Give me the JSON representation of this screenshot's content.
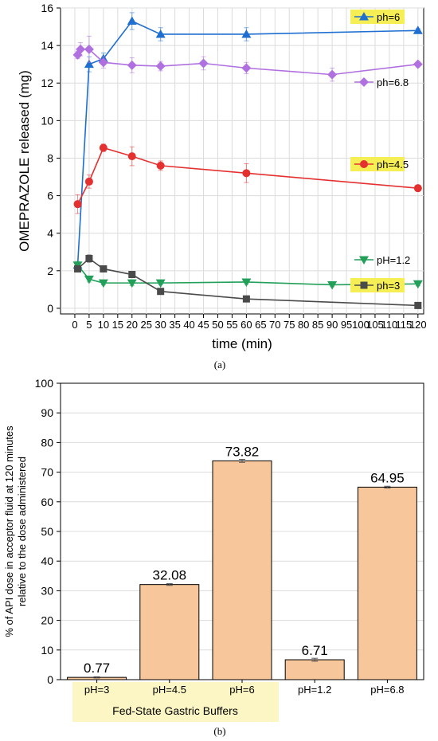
{
  "chart_data": [
    {
      "type": "line",
      "panel_label": "(a)",
      "xlabel": "time (min)",
      "ylabel": "OMEPRAZOLE released (mg)",
      "xlim": [
        -5,
        122
      ],
      "ylim": [
        -0.3,
        16
      ],
      "xticks": [
        "0",
        "5",
        "10",
        "15",
        "20",
        "25",
        "30",
        "35",
        "40",
        "45",
        "50",
        "55",
        "60",
        "65",
        "70",
        "75",
        "80",
        "85",
        "90",
        "95",
        "100",
        "105",
        "110",
        "115",
        "120"
      ],
      "yticks": [
        "0",
        "2",
        "4",
        "6",
        "8",
        "10",
        "12",
        "14",
        "16"
      ],
      "grid": true,
      "series": [
        {
          "name": "ph=6",
          "color": "#1f6fd1",
          "marker": "triangle-up",
          "legend_highlight": true,
          "x": [
            1,
            5,
            10,
            20,
            30,
            60,
            120
          ],
          "y": [
            2.3,
            13.0,
            13.3,
            15.3,
            14.6,
            14.6,
            14.8
          ],
          "err": [
            0.15,
            0.4,
            0.3,
            0.45,
            0.35,
            0.35,
            0.1
          ]
        },
        {
          "name": "ph=6.8",
          "color": "#b070e0",
          "marker": "diamond",
          "legend_highlight": false,
          "x": [
            1,
            2,
            5,
            10,
            20,
            30,
            45,
            60,
            90,
            120
          ],
          "y": [
            13.5,
            13.8,
            13.8,
            13.1,
            12.95,
            12.9,
            13.05,
            12.8,
            12.45,
            13.0
          ],
          "err": [
            0.2,
            0.35,
            0.7,
            0.3,
            0.4,
            0.25,
            0.35,
            0.3,
            0.35,
            0.1
          ]
        },
        {
          "name": "ph=4.5",
          "color": "#e53030",
          "marker": "circle",
          "legend_highlight": true,
          "x": [
            1,
            5,
            10,
            20,
            30,
            60,
            120
          ],
          "y": [
            5.55,
            6.75,
            8.55,
            8.1,
            7.6,
            7.2,
            6.4
          ],
          "err": [
            0.5,
            0.35,
            0.2,
            0.5,
            0.25,
            0.5,
            0.15
          ]
        },
        {
          "name": "pH=1.2",
          "color": "#22a05a",
          "marker": "triangle-down",
          "legend_highlight": false,
          "x": [
            1,
            5,
            10,
            20,
            30,
            60,
            90,
            120
          ],
          "y": [
            2.3,
            1.55,
            1.35,
            1.35,
            1.35,
            1.4,
            1.25,
            1.3
          ],
          "err": [
            0.2,
            0.15,
            0.1,
            0.15,
            0.1,
            0.1,
            0.1,
            0.1
          ]
        },
        {
          "name": "ph=3",
          "color": "#4a4a4a",
          "marker": "square",
          "legend_highlight": true,
          "x": [
            1,
            5,
            10,
            20,
            30,
            60,
            120
          ],
          "y": [
            2.1,
            2.65,
            2.1,
            1.8,
            0.9,
            0.5,
            0.15
          ],
          "err": [
            0.15,
            0.2,
            0.1,
            0.15,
            0.1,
            0.05,
            0.05
          ]
        }
      ]
    },
    {
      "type": "bar",
      "panel_label": "(b)",
      "ylabel": "% of API dose in acceptor fluid at 120 minutes relative to the dose administered",
      "ylabel_lines": [
        "% of API dose in acceptor fluid at 120 minutes",
        "relative to the dose administered"
      ],
      "ylim": [
        0,
        100
      ],
      "yticks": [
        "0",
        "10",
        "20",
        "30",
        "40",
        "50",
        "60",
        "70",
        "80",
        "90",
        "100"
      ],
      "grid": true,
      "categories": [
        "pH=3",
        "pH=4.5",
        "pH=6",
        "pH=1.2",
        "pH=6.8"
      ],
      "values": [
        0.77,
        32.08,
        73.82,
        6.71,
        64.95
      ],
      "value_labels": [
        "0.77",
        "32.08",
        "73.82",
        "6.71",
        "64.95"
      ],
      "err": [
        0.2,
        0.3,
        0.5,
        0.5,
        0.3
      ],
      "bar_color": "#f7c79b",
      "group_label": "Fed-State Gastric Buffers",
      "group_highlight_color": "#fbf6c3"
    }
  ]
}
